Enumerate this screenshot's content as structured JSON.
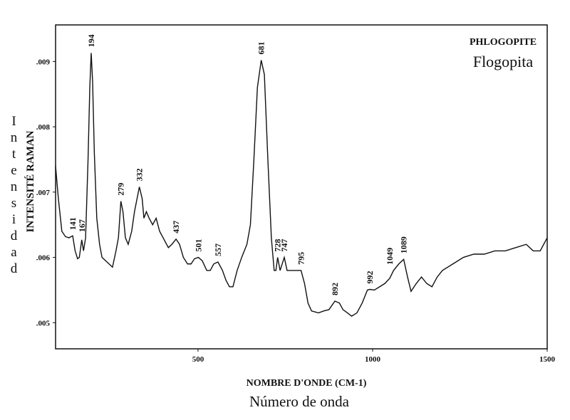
{
  "chart_data": {
    "type": "line",
    "title": "PHLOGOPITE",
    "subtitle": "Flogopita",
    "x_label": "NOMBRE D'ONDE (CM-1)",
    "x_label_2": "Número de onda",
    "y_label": "INTENSITÉ RAMAN",
    "y_label_2": "Intensidad",
    "xlim": [
      92,
      1500
    ],
    "ylim": [
      0.0046,
      0.00956
    ],
    "xticks": [
      500,
      1000,
      1500
    ],
    "yticks": [
      {
        "value": 0.005,
        "label": ".005"
      },
      {
        "value": 0.006,
        "label": ".006"
      },
      {
        "value": 0.007,
        "label": ".007"
      },
      {
        "value": 0.008,
        "label": ".008"
      },
      {
        "value": 0.009,
        "label": ".009"
      }
    ],
    "grid": false,
    "series": [
      {
        "color": "#111111",
        "x": [
          92,
          100,
          110,
          120,
          130,
          141,
          148,
          155,
          160,
          167,
          172,
          178,
          185,
          190,
          194,
          198,
          203,
          210,
          218,
          225,
          235,
          245,
          255,
          265,
          272,
          279,
          285,
          292,
          300,
          310,
          318,
          332,
          340,
          345,
          352,
          360,
          370,
          380,
          390,
          400,
          415,
          425,
          437,
          447,
          458,
          470,
          480,
          490,
          501,
          512,
          525,
          535,
          545,
          557,
          570,
          580,
          590,
          600,
          612,
          625,
          640,
          650,
          660,
          670,
          681,
          690,
          700,
          710,
          718,
          723,
          728,
          735,
          747,
          755,
          765,
          780,
          795,
          805,
          815,
          825,
          845,
          860,
          875,
          892,
          905,
          915,
          928,
          940,
          955,
          970,
          985,
          992,
          1005,
          1020,
          1035,
          1049,
          1060,
          1075,
          1089,
          1100,
          1110,
          1125,
          1140,
          1155,
          1170,
          1185,
          1200,
          1230,
          1260,
          1290,
          1320,
          1350,
          1380,
          1410,
          1440,
          1460,
          1480,
          1500
        ],
        "values": [
          0.0074,
          0.0069,
          0.0064,
          0.00632,
          0.0063,
          0.00633,
          0.0061,
          0.00598,
          0.006,
          0.00627,
          0.0061,
          0.0063,
          0.0075,
          0.0086,
          0.00913,
          0.0087,
          0.0076,
          0.0066,
          0.0062,
          0.006,
          0.00595,
          0.0059,
          0.00585,
          0.0061,
          0.0063,
          0.00686,
          0.0067,
          0.0063,
          0.0062,
          0.0064,
          0.0067,
          0.00708,
          0.0069,
          0.0066,
          0.0067,
          0.0066,
          0.0065,
          0.0066,
          0.0064,
          0.0063,
          0.00615,
          0.0062,
          0.00628,
          0.0062,
          0.006,
          0.0059,
          0.0059,
          0.00598,
          0.006,
          0.00595,
          0.0058,
          0.0058,
          0.0059,
          0.00593,
          0.0058,
          0.00565,
          0.00555,
          0.00555,
          0.0058,
          0.006,
          0.0062,
          0.0065,
          0.0075,
          0.0086,
          0.00902,
          0.0088,
          0.0075,
          0.0063,
          0.0058,
          0.0058,
          0.006,
          0.0058,
          0.006,
          0.0058,
          0.0058,
          0.0058,
          0.0058,
          0.0056,
          0.0053,
          0.00518,
          0.00515,
          0.00518,
          0.0052,
          0.00533,
          0.0053,
          0.0052,
          0.00515,
          0.0051,
          0.00515,
          0.0053,
          0.0055,
          0.00551,
          0.0055,
          0.00555,
          0.0056,
          0.00568,
          0.0058,
          0.0059,
          0.00597,
          0.0057,
          0.00548,
          0.0056,
          0.0057,
          0.0056,
          0.00555,
          0.0057,
          0.0058,
          0.0059,
          0.006,
          0.00605,
          0.00605,
          0.0061,
          0.0061,
          0.00615,
          0.0062,
          0.0061,
          0.0061,
          0.0063
        ]
      }
    ],
    "annotations": [
      {
        "text": "141",
        "x": 141
      },
      {
        "text": "167",
        "x": 167
      },
      {
        "text": "194",
        "x": 194
      },
      {
        "text": "279",
        "x": 279
      },
      {
        "text": "332",
        "x": 332
      },
      {
        "text": "437",
        "x": 437
      },
      {
        "text": "501",
        "x": 501
      },
      {
        "text": "557",
        "x": 557
      },
      {
        "text": "681",
        "x": 681
      },
      {
        "text": "728",
        "x": 728
      },
      {
        "text": "747",
        "x": 747
      },
      {
        "text": "795",
        "x": 795
      },
      {
        "text": "892",
        "x": 892
      },
      {
        "text": "992",
        "x": 992
      },
      {
        "text": "1049",
        "x": 1049
      },
      {
        "text": "1089",
        "x": 1089
      }
    ]
  }
}
